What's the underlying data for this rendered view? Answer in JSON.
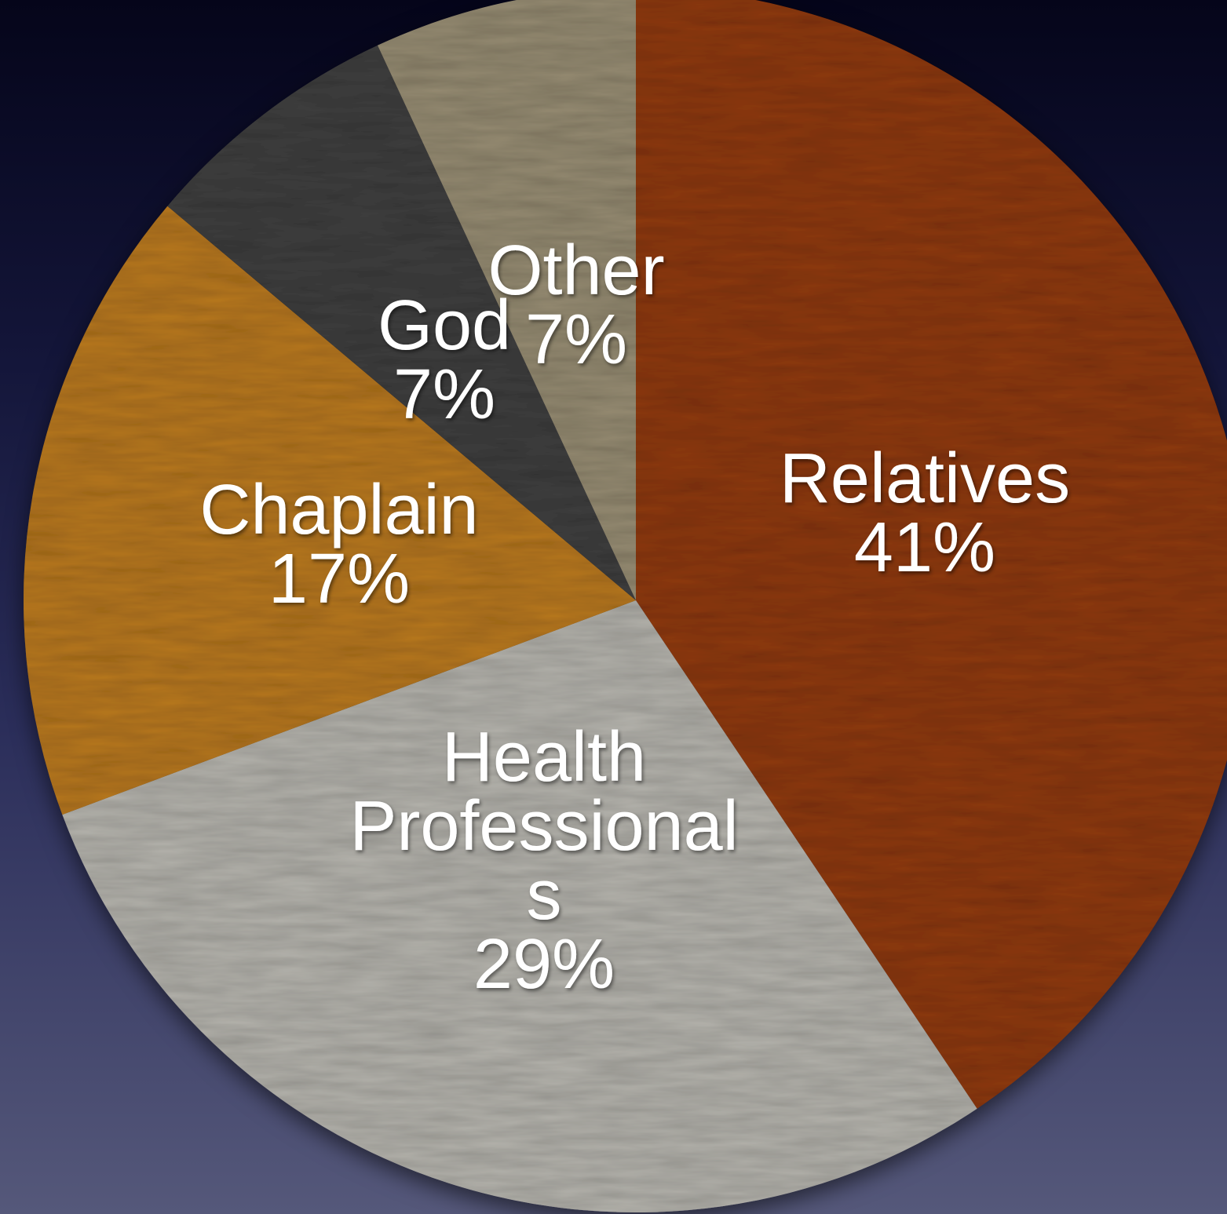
{
  "chart_data": {
    "type": "pie",
    "title": "",
    "start_angle_deg": 0,
    "direction": "clockwise",
    "slices": [
      {
        "name": "Relatives",
        "label_lines": [
          "Relatives"
        ],
        "percent_label": "41%",
        "value": 41,
        "color": "#8e3a14"
      },
      {
        "name": "Health Professionals",
        "label_lines": [
          "Health",
          "Professional",
          "s"
        ],
        "percent_label": "29%",
        "value": 29,
        "color": "#b4b2ac"
      },
      {
        "name": "Chaplain",
        "label_lines": [
          "Chaplain"
        ],
        "percent_label": "17%",
        "value": 17,
        "color": "#b77824"
      },
      {
        "name": "God",
        "label_lines": [
          "God"
        ],
        "percent_label": "7%",
        "value": 7,
        "color": "#3f3f40"
      },
      {
        "name": "Other",
        "label_lines": [
          "Other"
        ],
        "percent_label": "7%",
        "value": 7,
        "color": "#958b72"
      }
    ]
  }
}
